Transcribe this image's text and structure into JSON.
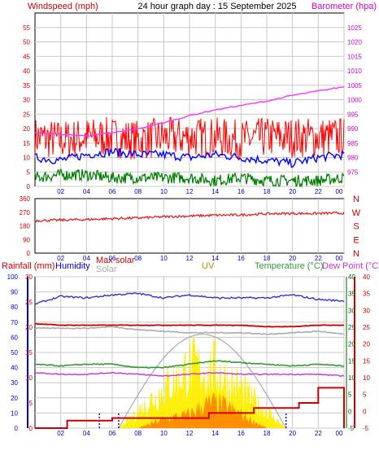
{
  "title": "24 hour graph day : 15 September 2025",
  "colors": {
    "background": "#ffffff",
    "plot_bg": "#ffffff",
    "grid": "#c8c8c8",
    "axis_left_top": "#cc0000",
    "axis_right_top": "#d000d0",
    "axis_blue": "#0000cc",
    "axis_green": "#006600",
    "axis_red": "#cc0000",
    "wind_avg": "#0000ff",
    "wind_gust": "#ff0000",
    "wind_dir_label": "#cc0000",
    "wind_min": "#008000",
    "barometer": "#ff33ff",
    "wind_dir": "#dd2222",
    "humidity": "#3333cc",
    "max_solar": "#cc0000",
    "solar": "#aaaaaa",
    "uv": "#cc8800",
    "temperature": "#339933",
    "dew_point": "#cc33cc",
    "rain": "#cc0000",
    "solar_fill": "#ffee00",
    "uv_fill": "#ff8800"
  },
  "x_ticks": [
    "02",
    "04",
    "06",
    "08",
    "10",
    "12",
    "14",
    "16",
    "18",
    "20",
    "22",
    "00"
  ],
  "panels": {
    "wind": {
      "left_title": "Windspeed (mph)",
      "right_title": "Barometer (hpa)",
      "left_ticks": [
        "0",
        "5",
        "10",
        "15",
        "20",
        "25",
        "30",
        "35",
        "40",
        "45",
        "50",
        "55"
      ],
      "right_ticks": [
        "975",
        "980",
        "985",
        "990",
        "995",
        "1000",
        "1005",
        "1010",
        "1015",
        "1020",
        "1025"
      ]
    },
    "direction": {
      "left_ticks": [
        "0",
        "90",
        "180",
        "270",
        "360"
      ],
      "right_labels": [
        "N",
        "W",
        "S",
        "E",
        "N"
      ]
    },
    "weather": {
      "headers": {
        "rainfall": "Rainfall (mm)",
        "humidity": "Humidity",
        "max_solar": "Max solar",
        "solar": "Solar",
        "uv": "UV",
        "temperature": "Temperature (°C)",
        "dew_point": "Dew Point (°C)"
      },
      "axis_humidity_ticks": [
        "0",
        "10",
        "20",
        "30",
        "40",
        "50",
        "60",
        "70",
        "80",
        "90",
        "100"
      ],
      "axis_rain_ticks": [
        "0",
        "5",
        "10",
        "15",
        "20",
        "25",
        "30"
      ],
      "axis_temp_ticks": [
        "-5",
        "0",
        "5",
        "10",
        "15",
        "20",
        "25",
        "30",
        "35",
        "40"
      ],
      "axis_dew_ticks": [
        "-5",
        "0",
        "5",
        "10",
        "15",
        "20",
        "25",
        "30",
        "35",
        "40"
      ]
    }
  },
  "chart_data": [
    {
      "type": "line",
      "title": "Windspeed (mph)",
      "x_range_hours": [
        0,
        24
      ],
      "ylim": [
        0,
        60
      ],
      "y2lim": [
        970,
        1030
      ],
      "series": [
        {
          "name": "Windspeed (mph)",
          "axis": "left",
          "x": [
            0,
            2,
            4,
            6,
            8,
            10,
            12,
            14,
            16,
            18,
            20,
            22,
            24
          ],
          "values": [
            17,
            16,
            17,
            17,
            16,
            17,
            17,
            17,
            16,
            17,
            17,
            17,
            17
          ]
        },
        {
          "axis": "left",
          "x": [
            0,
            2,
            4,
            6,
            8,
            10,
            12,
            14,
            16,
            18,
            20,
            22,
            24
          ],
          "values": [
            10,
            9,
            11,
            12,
            11,
            11,
            10,
            11,
            10,
            9,
            8,
            10,
            11
          ]
        },
        {
          "axis": "left",
          "x": [
            0,
            2,
            4,
            6,
            8,
            10,
            12,
            14,
            16,
            18,
            20,
            22,
            24
          ],
          "values": [
            3,
            4,
            4,
            3,
            3,
            3,
            3,
            2,
            3,
            2,
            2,
            2,
            3
          ]
        },
        {
          "name": "Barometer (hpa)",
          "axis": "right",
          "x": [
            0,
            2,
            4,
            6,
            8,
            10,
            12,
            14,
            16,
            18,
            20,
            22,
            24
          ],
          "values": [
            988.5,
            988,
            987.5,
            988.5,
            990,
            992,
            994.5,
            996.5,
            998,
            999.5,
            1001.5,
            1003,
            1004.5
          ]
        }
      ]
    },
    {
      "type": "scatter",
      "x_range_hours": [
        0,
        24
      ],
      "ylim": [
        0,
        360
      ],
      "series": [
        {
          "x": [
            0,
            2,
            4,
            6,
            8,
            10,
            12,
            14,
            16,
            18,
            20,
            22,
            24
          ],
          "values": [
            215,
            218,
            222,
            228,
            232,
            240,
            245,
            250,
            252,
            260,
            262,
            262,
            265
          ]
        }
      ]
    },
    {
      "type": "line",
      "x_range_hours": [
        0,
        24
      ],
      "ylim": [
        0,
        100
      ],
      "y2lim": [
        -5,
        40
      ],
      "series": [
        {
          "name": "Humidity",
          "axis": "humidity",
          "x": [
            0,
            2,
            4,
            6,
            8,
            10,
            12,
            14,
            16,
            18,
            20,
            22,
            24
          ],
          "values": [
            82,
            87,
            86,
            88,
            89,
            86,
            88,
            86,
            86,
            86,
            88,
            85,
            84
          ]
        },
        {
          "name": "Max solar",
          "axis": "humidity",
          "x": [
            0,
            2,
            4,
            6,
            8,
            10,
            12,
            14,
            16,
            18,
            20,
            22,
            24
          ],
          "values": [
            69,
            68,
            68,
            68,
            68,
            68,
            68,
            68,
            68,
            67,
            67,
            68,
            68
          ]
        },
        {
          "name": "Solar",
          "axis": "humidity",
          "x": [
            0,
            2,
            4,
            6,
            8,
            10,
            12,
            14,
            16,
            18,
            20,
            22,
            24
          ],
          "values": [
            66,
            66,
            66,
            67,
            65,
            64,
            63,
            63,
            63,
            62,
            63,
            64,
            62
          ]
        },
        {
          "name": "Temperature (°C)",
          "axis": "temp",
          "x": [
            0,
            2,
            4,
            6,
            8,
            10,
            12,
            14,
            16,
            18,
            20,
            22,
            24
          ],
          "values": [
            14,
            13.5,
            14,
            14,
            13,
            13,
            14,
            15,
            14.5,
            14,
            13.5,
            14,
            13.5
          ]
        },
        {
          "name": "Dew Point (°C)",
          "axis": "temp",
          "x": [
            0,
            2,
            4,
            6,
            8,
            10,
            12,
            14,
            16,
            18,
            20,
            22,
            24
          ],
          "values": [
            11.5,
            11,
            11,
            11.5,
            11,
            10.5,
            11,
            11.5,
            11,
            11,
            11,
            11,
            10.5
          ]
        },
        {
          "name": "Rainfall (mm)",
          "axis": "rain",
          "step": true,
          "x": [
            0,
            2,
            2.5,
            6,
            10,
            13.5,
            17,
            20.5,
            22,
            24
          ],
          "values": [
            0,
            0,
            1.5,
            2,
            2,
            3,
            4,
            5,
            8,
            0
          ]
        },
        {
          "axis": "humidity",
          "x": [
            6.5,
            10,
            12,
            14,
            16.5,
            19.5
          ],
          "values": [
            0,
            33,
            50,
            49,
            28,
            0
          ]
        },
        {
          "name": "UV",
          "axis": "humidity",
          "x": [
            8,
            10,
            12,
            13,
            14,
            15,
            16,
            18
          ],
          "values": [
            0,
            8,
            12,
            20,
            22,
            18,
            12,
            0
          ]
        }
      ]
    }
  ]
}
